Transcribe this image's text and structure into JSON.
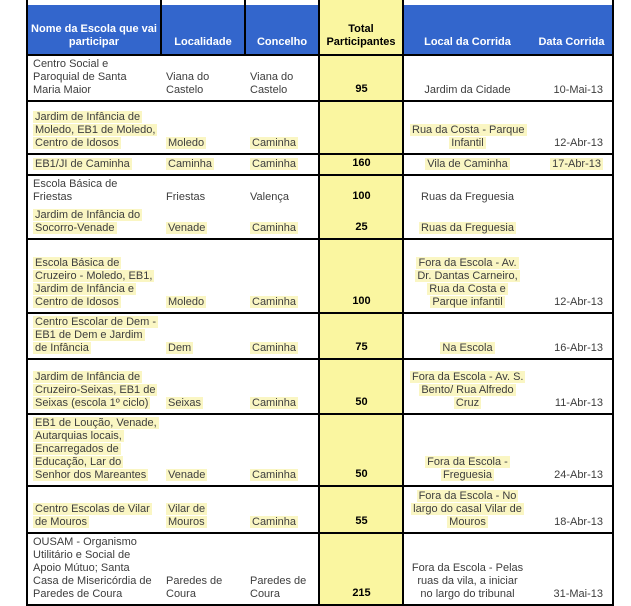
{
  "colors": {
    "header_bg": "#3366CC",
    "header_text": "#FFFFFF",
    "total_column_bg": "#FAF6A0",
    "highlight": "#FAF6C3",
    "border": "#000000",
    "body_text": "#3D3D3D"
  },
  "table": {
    "columns": [
      {
        "label": "Nome da Escola que vai participar"
      },
      {
        "label": "Localidade"
      },
      {
        "label": "Concelho"
      },
      {
        "label": "Total Participantes"
      },
      {
        "label": "Local da Corrida"
      },
      {
        "label": "Data Corrida"
      }
    ],
    "rows": [
      {
        "school": "Centro Social e Paroquial de Santa Maria Maior",
        "locality": "Viana do Castelo",
        "county": "Viana do Castelo",
        "total": "95",
        "location": "Jardim da Cidade",
        "date": "10-Mai-13",
        "highlight": {
          "school": false,
          "locality": false,
          "county": false,
          "location": false,
          "date": false
        }
      },
      {
        "school": "Jardim de Infância de Moledo, EB1 de Moledo, Centro de Idosos",
        "locality": "Moledo",
        "county": "Caminha",
        "total": "",
        "location": "Rua da Costa - Parque Infantil",
        "date": "12-Abr-13",
        "highlight": {
          "school": true,
          "locality": true,
          "county": true,
          "location": true,
          "date": false
        }
      },
      {
        "school": "EB1/JI de Caminha",
        "locality": "Caminha",
        "county": "Caminha",
        "total": "160",
        "location": "Vila de Caminha",
        "date": "17-Abr-13",
        "highlight": {
          "school": true,
          "locality": true,
          "county": true,
          "location": true,
          "date": true
        }
      },
      {
        "school": "Escola Básica de Friestas",
        "locality": "Friestas",
        "county": "Valença",
        "total": "100",
        "location": "Ruas da Freguesia",
        "date": "",
        "merge_with_next_row": true,
        "highlight": {
          "school": false,
          "locality": false,
          "county": false,
          "location": false,
          "date": false
        }
      },
      {
        "school": "Jardim de Infância do Socorro-Venade",
        "locality": "Venade",
        "county": "Caminha",
        "total": "25",
        "location": "Ruas da Freguesia",
        "date": "",
        "highlight": {
          "school": true,
          "locality": true,
          "county": true,
          "location": true,
          "date": false
        }
      },
      {
        "school": "Escola Básica de Cruzeiro - Moledo, EB1, Jardim de Infância e Centro de Idosos",
        "locality": "Moledo",
        "county": "Caminha",
        "total": "100",
        "location": "Fora da Escola - Av. Dr. Dantas Carneiro, Rua da Costa e Parque infantil",
        "date": "12-Abr-13",
        "highlight": {
          "school": true,
          "locality": true,
          "county": true,
          "location": true,
          "date": false
        }
      },
      {
        "school": "Centro Escolar de Dem - EB1 de Dem e Jardim de Infância",
        "locality": "Dem",
        "county": "Caminha",
        "total": "75",
        "location": "Na Escola",
        "date": "16-Abr-13",
        "highlight": {
          "school": true,
          "locality": true,
          "county": true,
          "location": true,
          "date": false
        }
      },
      {
        "school": "Jardim de Infância de Cruzeiro-Seixas, EB1 de Seixas (escola 1º ciclo)",
        "locality": "Seixas",
        "county": "Caminha",
        "total": "50",
        "location": "Fora da Escola - Av. S. Bento/ Rua Alfredo Cruz",
        "date": "11-Abr-13",
        "highlight": {
          "school": true,
          "locality": true,
          "county": true,
          "location": true,
          "date": false
        }
      },
      {
        "school": "EB1 de Loução, Venade, Autarquias locais, Encarregados de Educação, Lar do Senhor dos Mareantes",
        "locality": "Venade",
        "county": "Caminha",
        "total": "50",
        "location": "Fora da Escola - Freguesia",
        "date": "24-Abr-13",
        "highlight": {
          "school": true,
          "locality": true,
          "county": true,
          "location": true,
          "date": false
        }
      },
      {
        "school": "Centro Escolas de Vilar de Mouros",
        "locality": "Vilar de Mouros",
        "county": "Caminha",
        "total": "55",
        "location": "Fora da Escola - No largo do casal Vilar de Mouros",
        "date": "18-Abr-13",
        "highlight": {
          "school": true,
          "locality": true,
          "county": true,
          "location": true,
          "date": false
        }
      },
      {
        "school": "OUSAM - Organismo Utilitário e Social de Apoio Mútuo; Santa Casa de Misericórdia de Paredes de Coura",
        "locality": "Paredes de Coura",
        "county": "Paredes de Coura",
        "total": "215",
        "location": "Fora da Escola - Pelas ruas da vila, a iniciar no largo do tribunal",
        "date": "31-Mai-13",
        "highlight": {
          "school": false,
          "locality": false,
          "county": false,
          "location": false,
          "date": false
        }
      }
    ]
  }
}
